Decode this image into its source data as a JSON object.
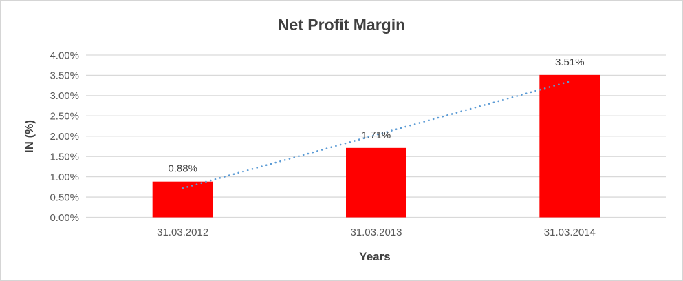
{
  "chart_data": {
    "type": "bar",
    "title": "Net Profit Margin",
    "xlabel": "Years",
    "ylabel": "IN (%)",
    "categories": [
      "31.03.2012",
      "31.03.2013",
      "31.03.2014"
    ],
    "series": [
      {
        "name": "Net Profit Margin",
        "values": [
          0.88,
          1.71,
          3.51
        ]
      }
    ],
    "data_labels": [
      "0.88%",
      "1.71%",
      "3.51%"
    ],
    "ylim": [
      0,
      4
    ],
    "ytick_step": 0.5,
    "ytick_labels": [
      "0.00%",
      "0.50%",
      "1.00%",
      "1.50%",
      "2.00%",
      "2.50%",
      "3.00%",
      "3.50%",
      "4.00%"
    ],
    "grid": true,
    "legend_position": "none",
    "trendline": {
      "type": "linear",
      "style": "dotted"
    },
    "colors": {
      "bar": "#FF0000",
      "trendline": "#5B9BD5",
      "gridline": "#D9D9D9",
      "tick_text": "#595959",
      "title_text": "#404040",
      "data_label_text": "#404040",
      "border": "#D5D5D5",
      "background": "#FFFFFF"
    }
  }
}
